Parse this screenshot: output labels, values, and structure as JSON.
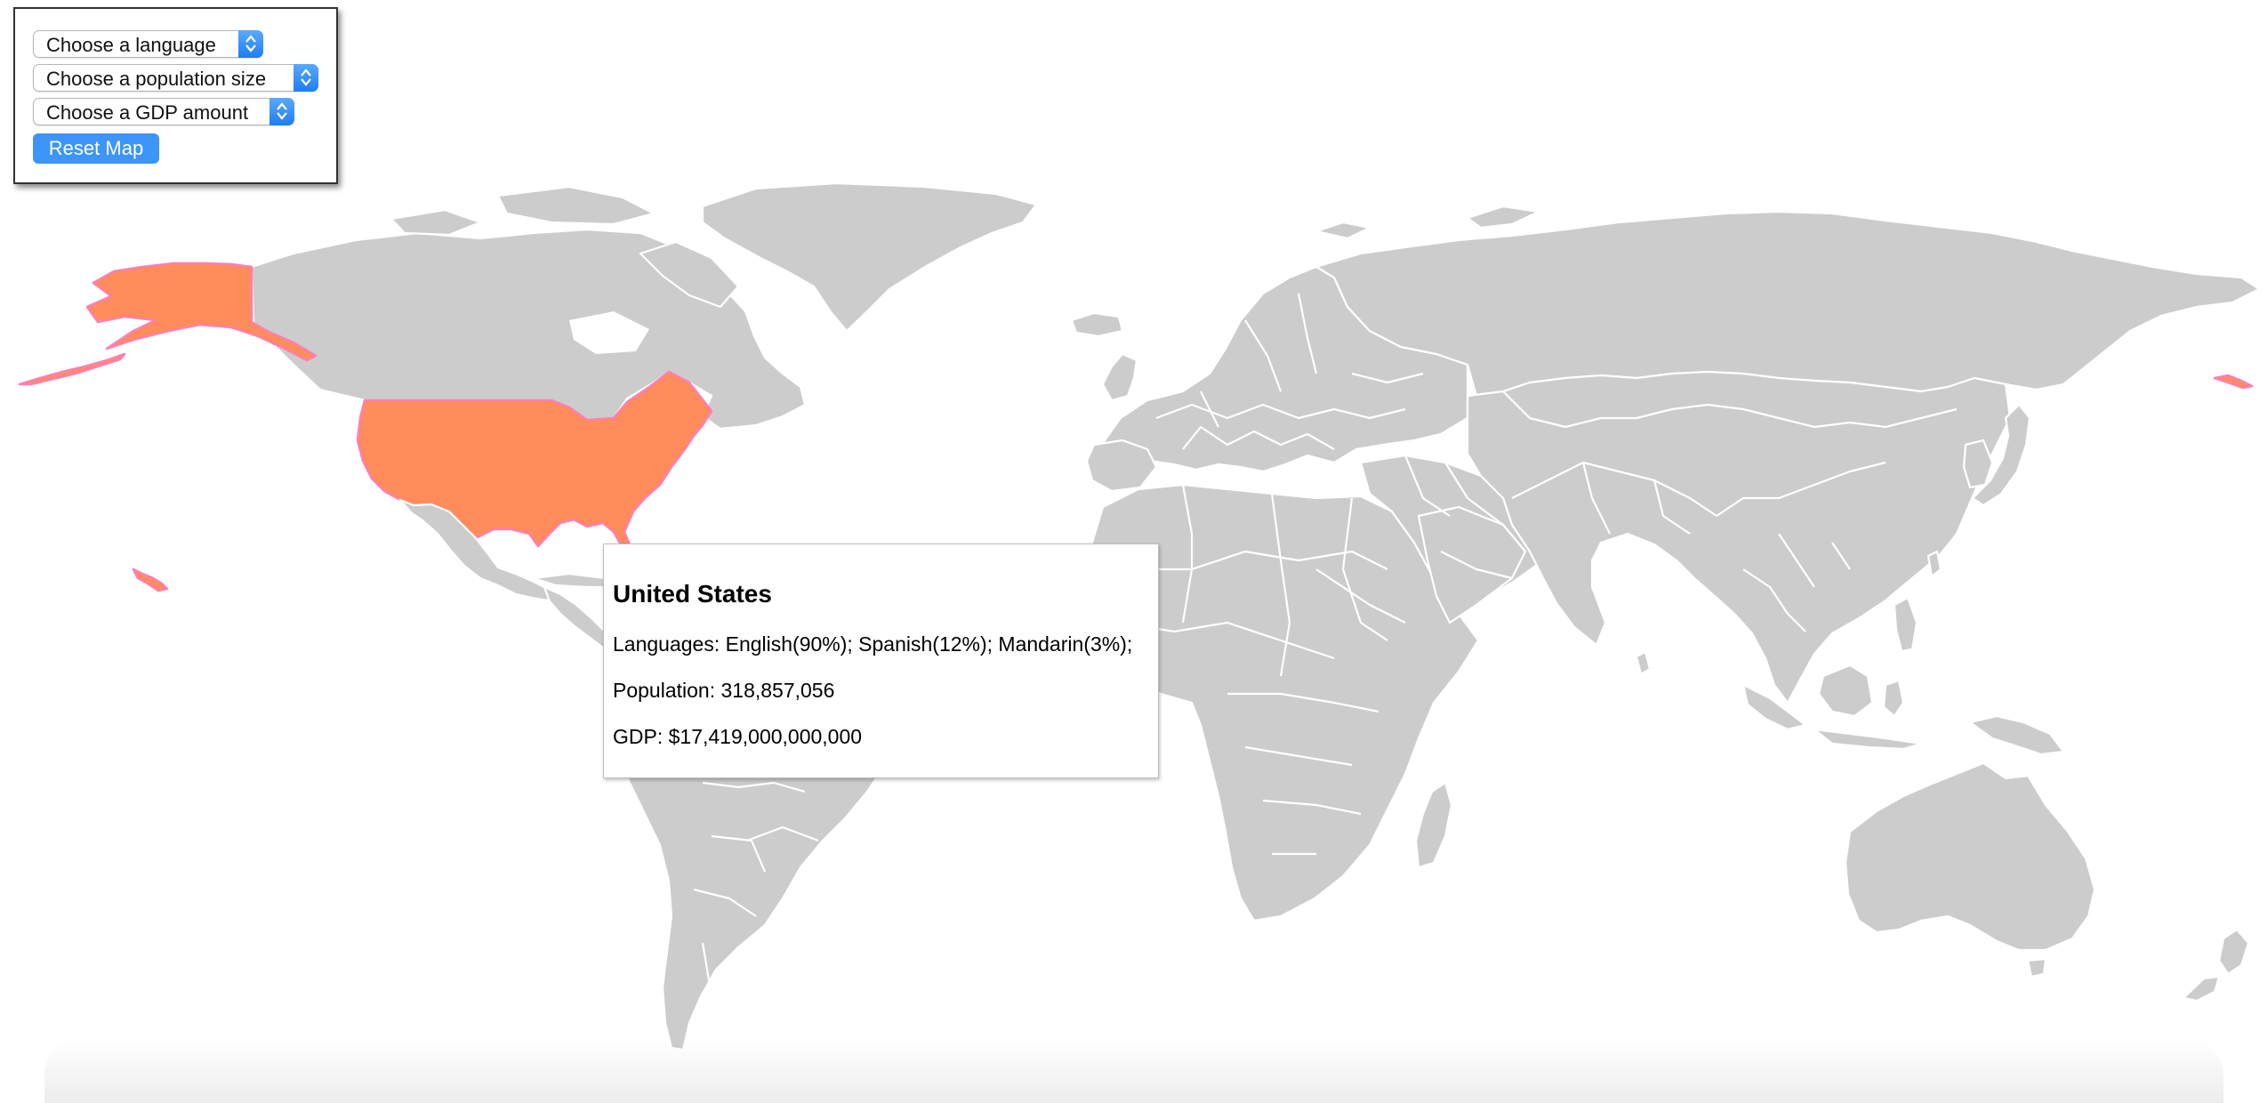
{
  "controls": {
    "language_select": {
      "selected": "Choose a language"
    },
    "population_select": {
      "selected": "Choose a population size"
    },
    "gdp_select": {
      "selected": "Choose a GDP amount"
    },
    "reset_label": "Reset Map"
  },
  "map": {
    "highlighted_country": "United States",
    "highlight_color": "#ff8c5a",
    "highlight_outline_color": "#ff7fb0",
    "land_color": "#cccccc",
    "border_color": "#ffffff",
    "accent_color": "#3d95f7"
  },
  "tooltip": {
    "title": "United States",
    "languages": "Languages: English(90%); Spanish(12%); Mandarin(3%);",
    "population": "Population: 318,857,056",
    "gdp": "GDP: $17,419,000,000,000"
  }
}
